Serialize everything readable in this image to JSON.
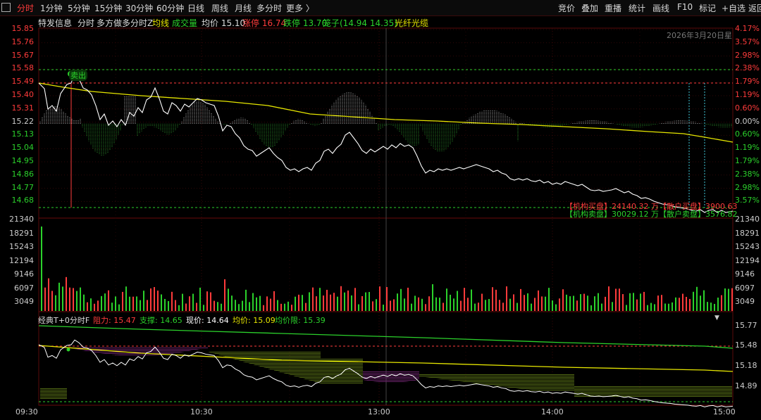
{
  "toolbar": {
    "tabs": [
      "分时",
      "1分钟",
      "5分钟",
      "15分钟",
      "30分钟",
      "60分钟",
      "日线",
      "周线",
      "月线",
      "多分时",
      "更多 〉"
    ],
    "active_tab": "分时",
    "right_items": [
      "竞价",
      "叠加",
      "重播",
      "统计",
      "画线",
      "F10",
      "标记",
      "+自选",
      "返回"
    ]
  },
  "info": {
    "name": "特发信息",
    "mode": "分时",
    "multi": "多方做多分时Z",
    "avg_line_label": "均线",
    "vol_label": "成交量",
    "avg_price": "均价 15.10",
    "limit_up": "涨停 16.74",
    "limit_down": "跌停 13.70",
    "bamboo": "笼子(14.94 14.35)",
    "concept": "光纤光缆",
    "date": "2026年3月20日星"
  },
  "price_axis": {
    "left": [
      "15.85",
      "15.76",
      "15.67",
      "15.58",
      "15.49",
      "15.40",
      "15.31",
      "15.22",
      "15.13",
      "15.04",
      "14.95",
      "14.86",
      "14.77",
      "14.68"
    ],
    "right": [
      "4.17%",
      "3.57%",
      "2.98%",
      "2.38%",
      "1.79%",
      "1.19%",
      "0.60%",
      "0.00%",
      "0.60%",
      "1.19%",
      "1.79%",
      "2.38%",
      "2.98%",
      "3.57%"
    ]
  },
  "volume_axis": [
    "21340",
    "18291",
    "15243",
    "12194",
    "9146",
    "6097",
    "3049"
  ],
  "flow": {
    "inst_buy": "【机构买盘】24140.32 万【散户买盘】3900.63",
    "inst_sell": "【机构卖盘】30029.12 万【散户卖盘】3576.82"
  },
  "signal_label": "卖出",
  "indicator": {
    "name": "经典T+0分时F",
    "resistance": "阻力: 15.47",
    "support": "支撑: 14.65",
    "now": "现价: 14.64",
    "avg": "均价: 15.09",
    "avg_limit": "均价限: 15.39",
    "axis": [
      "15.77",
      "15.48",
      "15.18",
      "14.89"
    ]
  },
  "time_axis": [
    "09:30",
    "10:30",
    "13:00",
    "14:00",
    "15:00"
  ],
  "colors": {
    "up": "#ff3b3b",
    "down": "#2bd12b",
    "avg": "#e6e600",
    "price": "#ffffff",
    "grid": "#4a0a0a"
  }
}
